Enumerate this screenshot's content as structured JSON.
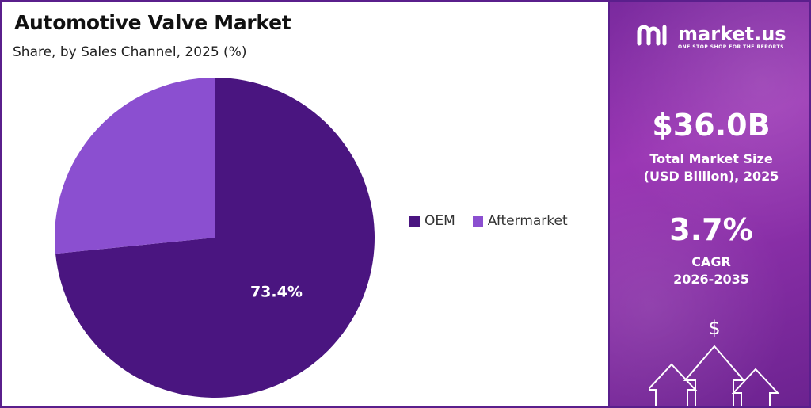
{
  "title": "Automotive Valve Market",
  "subtitle": "Share, by Sales Channel, 2025 (%)",
  "chart_data": {
    "type": "pie",
    "title": "Automotive Valve Market",
    "subtitle": "Share, by Sales Channel, 2025 (%)",
    "categories": [
      "OEM",
      "Aftermarket"
    ],
    "values": [
      73.4,
      26.6
    ],
    "data_labels": [
      "73.4%",
      ""
    ],
    "colors": [
      "#4a1580",
      "#8b4fd0"
    ],
    "legend_position": "right"
  },
  "brand": {
    "name": "market.us",
    "tagline": "ONE STOP SHOP FOR THE REPORTS"
  },
  "stats": {
    "market_size_value": "$36.0B",
    "market_size_label_line1": "Total Market Size",
    "market_size_label_line2": "(USD Billion), 2025",
    "cagr_value": "3.7%",
    "cagr_label_line1": "CAGR",
    "cagr_label_line2": "2026-2035"
  },
  "icons": {
    "dollar": "$",
    "brand_logo": "market-us-logo-icon",
    "growth": "growth-arrows-icon"
  }
}
